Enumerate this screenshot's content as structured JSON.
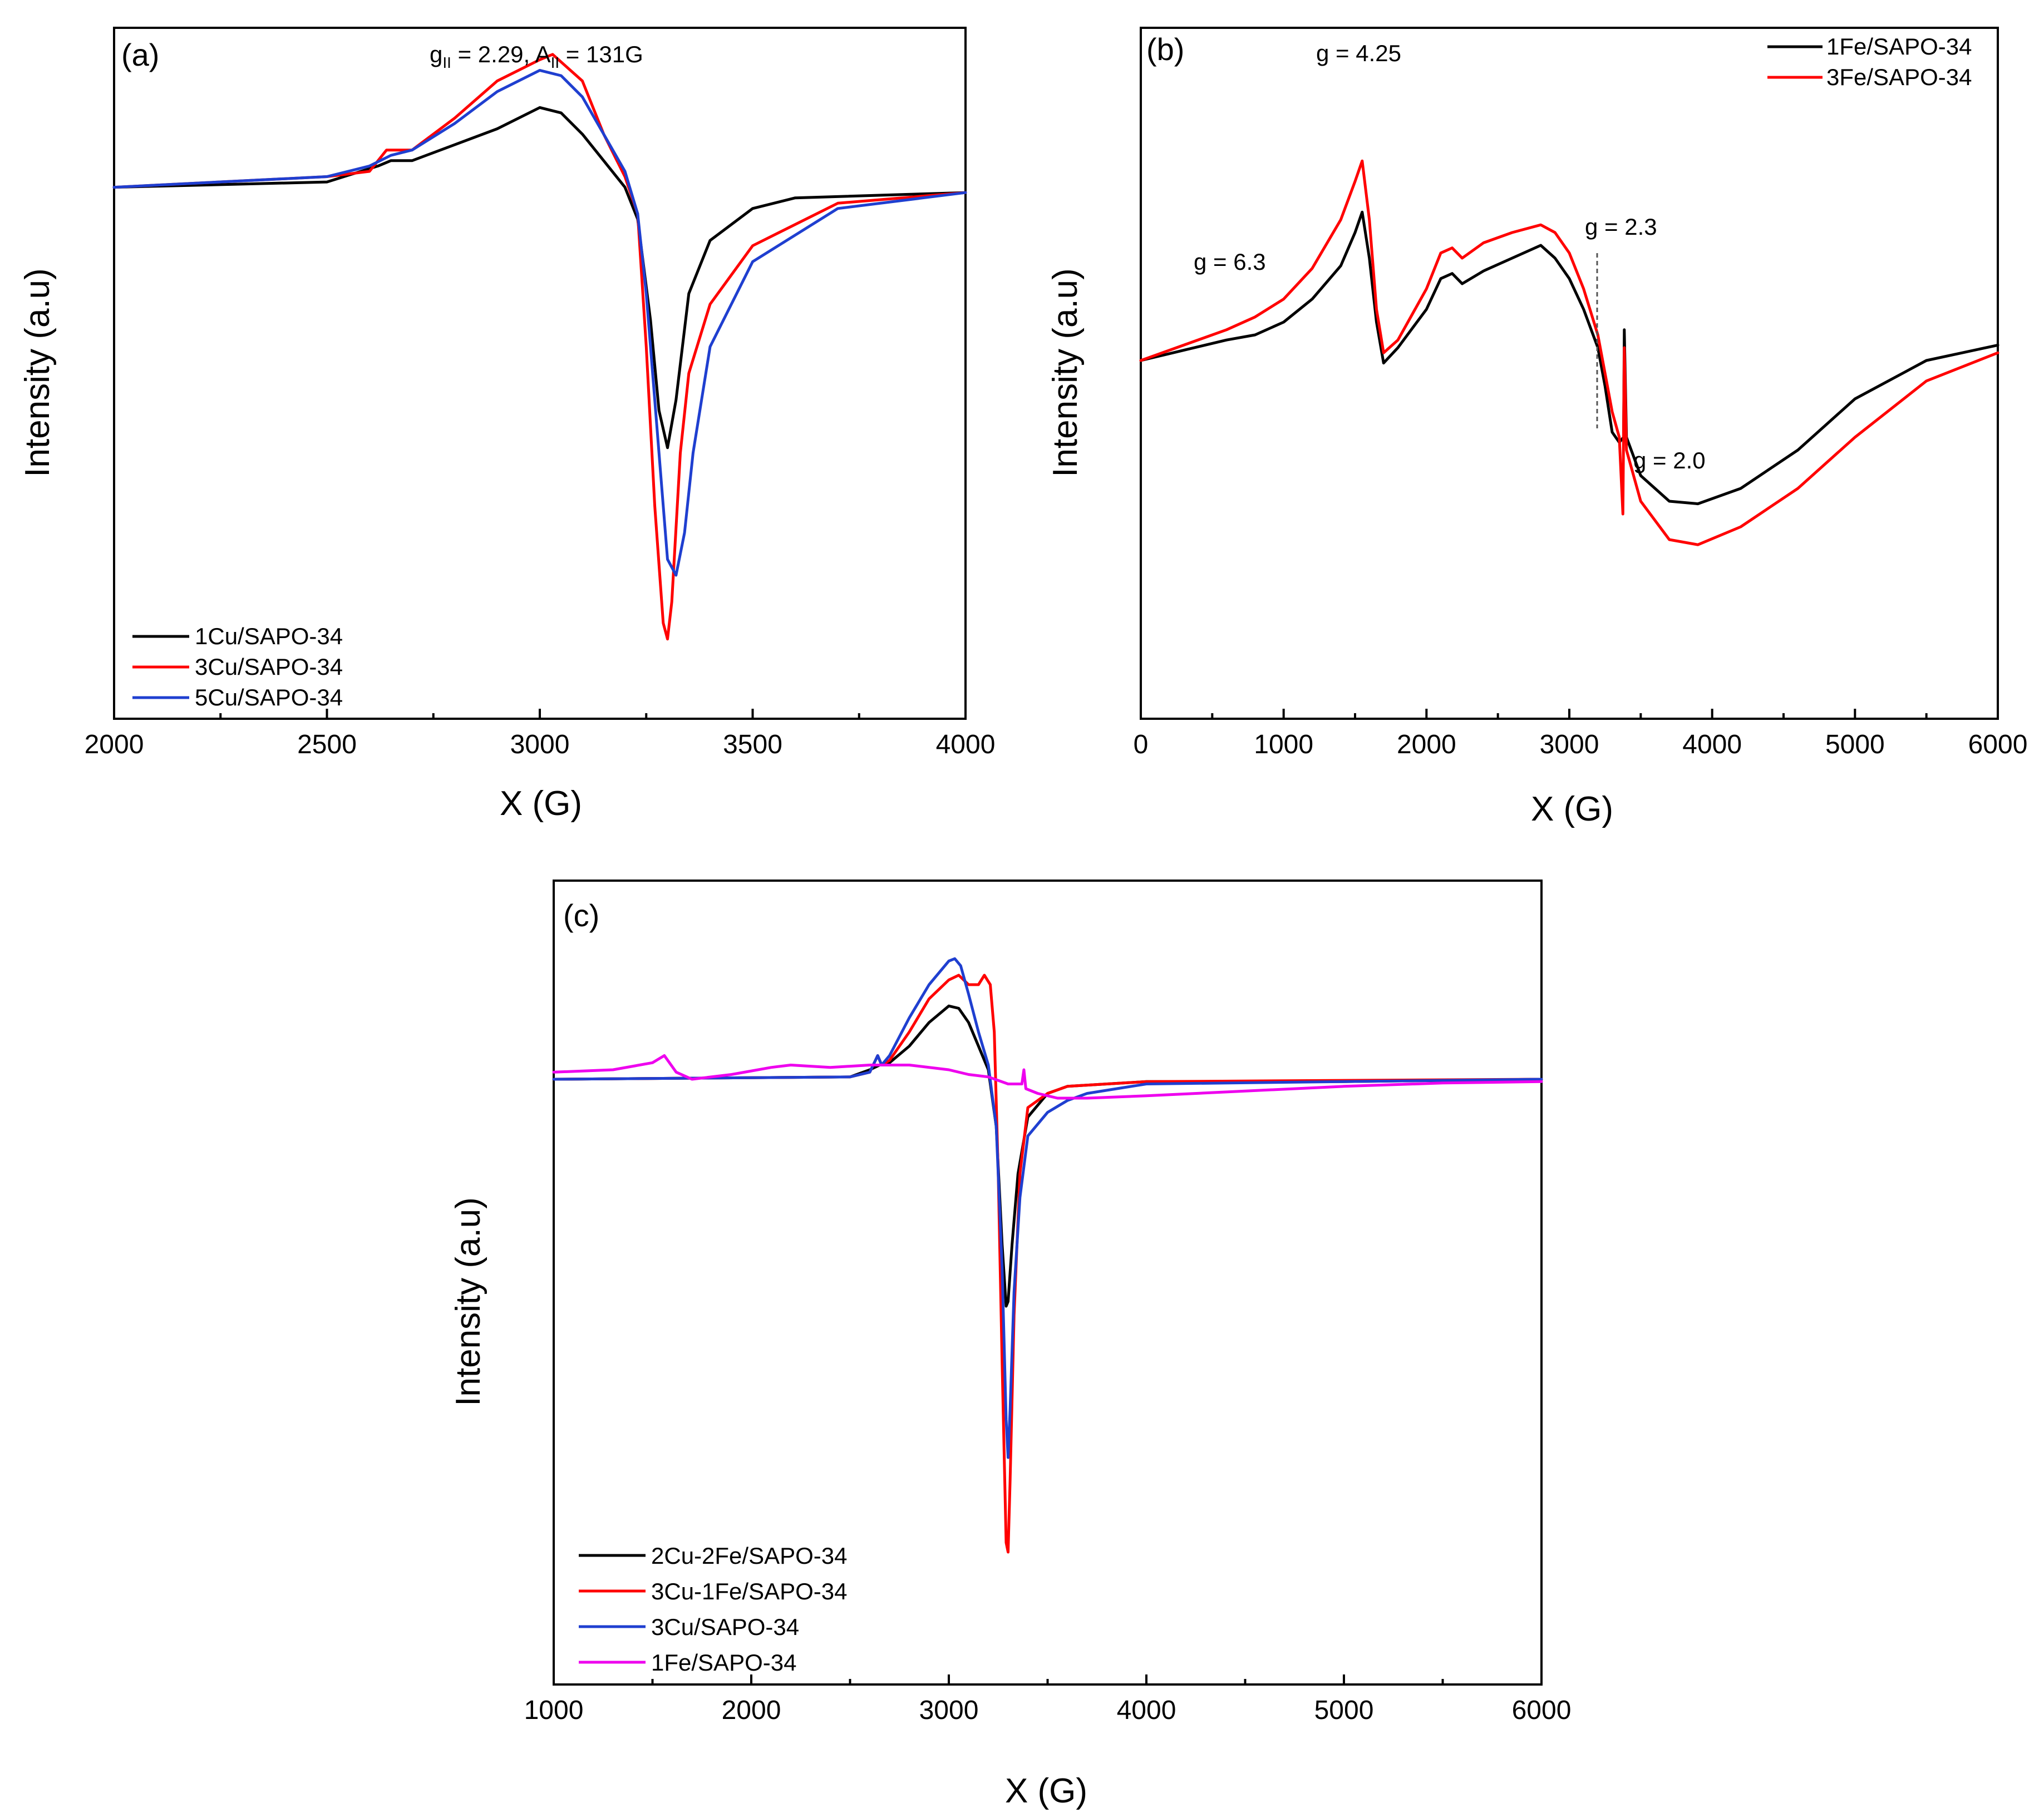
{
  "chart_data": [
    {
      "panel": "(a)",
      "type": "line",
      "title": "",
      "xlabel": "X (G)",
      "ylabel": "Intensity (a.u)",
      "xlim": [
        2000,
        4000
      ],
      "ylim": [
        -1.0,
        0.3
      ],
      "xticks": [
        "2000",
        "2500",
        "3000",
        "3500",
        "4000"
      ],
      "grid": false,
      "legend_position": "bottom-left",
      "annotations": {
        "g_text": "g",
        "g_sub": "II",
        "g_val": " = 2.29, A",
        "a_sub": "II",
        "a_val": " = 131G"
      },
      "series": [
        {
          "name": "1Cu/SAPO-34",
          "color": "#000000",
          "x": [
            2000,
            2500,
            2620,
            2650,
            2700,
            2800,
            2900,
            3000,
            3050,
            3100,
            3150,
            3200,
            3230,
            3260,
            3280,
            3300,
            3320,
            3350,
            3400,
            3500,
            3600,
            4000
          ],
          "y": [
            0.0,
            0.01,
            0.04,
            0.05,
            0.05,
            0.08,
            0.11,
            0.15,
            0.14,
            0.1,
            0.05,
            0.0,
            -0.06,
            -0.25,
            -0.42,
            -0.49,
            -0.4,
            -0.2,
            -0.1,
            -0.04,
            -0.02,
            -0.01
          ]
        },
        {
          "name": "3Cu/SAPO-34",
          "color": "#ff0000",
          "x": [
            2000,
            2500,
            2600,
            2640,
            2700,
            2800,
            2900,
            3000,
            3030,
            3100,
            3150,
            3200,
            3230,
            3250,
            3270,
            3290,
            3300,
            3310,
            3330,
            3350,
            3400,
            3500,
            3700,
            4000
          ],
          "y": [
            0.0,
            0.02,
            0.03,
            0.07,
            0.07,
            0.13,
            0.2,
            0.24,
            0.25,
            0.2,
            0.1,
            0.02,
            -0.05,
            -0.3,
            -0.6,
            -0.82,
            -0.85,
            -0.78,
            -0.5,
            -0.35,
            -0.22,
            -0.11,
            -0.03,
            -0.01
          ]
        },
        {
          "name": "5Cu/SAPO-34",
          "color": "#1f3fd0",
          "x": [
            2000,
            2500,
            2600,
            2650,
            2700,
            2800,
            2900,
            3000,
            3050,
            3100,
            3150,
            3200,
            3230,
            3250,
            3280,
            3300,
            3320,
            3340,
            3360,
            3400,
            3500,
            3700,
            4000
          ],
          "y": [
            0.0,
            0.02,
            0.04,
            0.06,
            0.07,
            0.12,
            0.18,
            0.22,
            0.21,
            0.17,
            0.1,
            0.03,
            -0.05,
            -0.2,
            -0.5,
            -0.7,
            -0.73,
            -0.65,
            -0.5,
            -0.3,
            -0.14,
            -0.04,
            -0.01
          ]
        }
      ]
    },
    {
      "panel": "(b)",
      "type": "line",
      "title": "",
      "xlabel": "X (G)",
      "ylabel": "Intensity (a.u)",
      "xlim": [
        0,
        6000
      ],
      "ylim": [
        -1.0,
        1.0
      ],
      "xticks": [
        "0",
        "1000",
        "2000",
        "3000",
        "4000",
        "5000",
        "6000"
      ],
      "grid": false,
      "legend_position": "top-right",
      "annotations": {
        "g425": "g = 4.25",
        "g63": "g = 6.3",
        "g23": "g = 2.3",
        "g20": "g = 2.0"
      },
      "series": [
        {
          "name": "1Fe/SAPO-34",
          "color": "#000000",
          "x": [
            0,
            300,
            600,
            800,
            1000,
            1200,
            1400,
            1500,
            1550,
            1600,
            1650,
            1700,
            1800,
            2000,
            2100,
            2180,
            2250,
            2400,
            2600,
            2800,
            2900,
            3000,
            3100,
            3200,
            3250,
            3300,
            3350,
            3380,
            3385,
            3400,
            3500,
            3700,
            3900,
            4200,
            4600,
            5000,
            5500,
            6000
          ],
          "y": [
            0.0,
            0.04,
            0.08,
            0.1,
            0.15,
            0.24,
            0.37,
            0.5,
            0.58,
            0.4,
            0.15,
            -0.01,
            0.05,
            0.2,
            0.32,
            0.34,
            0.3,
            0.35,
            0.4,
            0.45,
            0.4,
            0.32,
            0.2,
            0.05,
            -0.1,
            -0.28,
            -0.32,
            -0.3,
            0.12,
            -0.3,
            -0.45,
            -0.55,
            -0.56,
            -0.5,
            -0.35,
            -0.15,
            0.0,
            0.06
          ]
        },
        {
          "name": "3Fe/SAPO-34",
          "color": "#ff0000",
          "x": [
            0,
            300,
            600,
            800,
            1000,
            1200,
            1400,
            1500,
            1550,
            1600,
            1650,
            1700,
            1800,
            2000,
            2100,
            2180,
            2250,
            2400,
            2600,
            2800,
            2900,
            3000,
            3100,
            3200,
            3250,
            3300,
            3350,
            3375,
            3385,
            3400,
            3500,
            3700,
            3900,
            4200,
            4600,
            5000,
            5500,
            6000
          ],
          "y": [
            0.0,
            0.06,
            0.12,
            0.17,
            0.24,
            0.36,
            0.55,
            0.7,
            0.78,
            0.55,
            0.2,
            0.03,
            0.08,
            0.28,
            0.42,
            0.44,
            0.4,
            0.46,
            0.5,
            0.53,
            0.5,
            0.42,
            0.28,
            0.1,
            -0.05,
            -0.2,
            -0.3,
            -0.6,
            0.05,
            -0.35,
            -0.55,
            -0.7,
            -0.72,
            -0.65,
            -0.5,
            -0.3,
            -0.08,
            0.03
          ]
        }
      ]
    },
    {
      "panel": "(c)",
      "type": "line",
      "title": "",
      "xlabel": "X (G)",
      "ylabel": "Intensity (a.u)",
      "xlim": [
        1000,
        6000
      ],
      "ylim": [
        -1.0,
        0.3
      ],
      "xticks": [
        "1000",
        "2000",
        "3000",
        "4000",
        "5000",
        "6000"
      ],
      "grid": false,
      "legend_position": "bottom-left",
      "series": [
        {
          "name": "2Cu-2Fe/SAPO-34",
          "color": "#000000",
          "x": [
            1000,
            2500,
            2600,
            2650,
            2700,
            2800,
            2900,
            3000,
            3050,
            3100,
            3150,
            3200,
            3240,
            3270,
            3290,
            3300,
            3320,
            3350,
            3400,
            3500,
            3600,
            4000,
            5000,
            6000
          ],
          "y": [
            0.0,
            0.005,
            0.02,
            0.03,
            0.035,
            0.07,
            0.12,
            0.155,
            0.15,
            0.12,
            0.07,
            0.02,
            -0.1,
            -0.35,
            -0.48,
            -0.47,
            -0.35,
            -0.2,
            -0.08,
            -0.03,
            -0.015,
            -0.005,
            -0.005,
            0.0
          ]
        },
        {
          "name": "3Cu-1Fe/SAPO-34",
          "color": "#ff0000",
          "x": [
            1000,
            2500,
            2600,
            2640,
            2660,
            2700,
            2800,
            2900,
            3000,
            3050,
            3100,
            3150,
            3180,
            3210,
            3230,
            3250,
            3270,
            3290,
            3300,
            3310,
            3330,
            3360,
            3400,
            3500,
            3600,
            4000,
            6000
          ],
          "y": [
            0.0,
            0.005,
            0.015,
            0.05,
            0.03,
            0.04,
            0.1,
            0.17,
            0.21,
            0.22,
            0.2,
            0.2,
            0.22,
            0.2,
            0.1,
            -0.2,
            -0.6,
            -0.98,
            -1.0,
            -0.85,
            -0.5,
            -0.2,
            -0.06,
            -0.03,
            -0.015,
            -0.005,
            0.0
          ]
        },
        {
          "name": "3Cu/SAPO-34",
          "color": "#1f3fd0",
          "x": [
            1000,
            2500,
            2600,
            2640,
            2660,
            2700,
            2800,
            2900,
            3000,
            3030,
            3060,
            3100,
            3150,
            3200,
            3240,
            3270,
            3290,
            3300,
            3310,
            3330,
            3360,
            3400,
            3500,
            3600,
            3700,
            4000,
            6000
          ],
          "y": [
            0.0,
            0.005,
            0.015,
            0.05,
            0.03,
            0.05,
            0.13,
            0.2,
            0.25,
            0.255,
            0.24,
            0.18,
            0.1,
            0.03,
            -0.1,
            -0.4,
            -0.72,
            -0.8,
            -0.7,
            -0.45,
            -0.25,
            -0.12,
            -0.07,
            -0.045,
            -0.03,
            -0.01,
            0.0
          ]
        },
        {
          "name": "1Fe/SAPO-34",
          "color": "#ee00ee",
          "x": [
            1000,
            1300,
            1500,
            1560,
            1620,
            1700,
            1900,
            2100,
            2200,
            2400,
            2600,
            2800,
            3000,
            3100,
            3200,
            3300,
            3370,
            3380,
            3390,
            3450,
            3550,
            3700,
            4000,
            4500,
            5000,
            5500,
            6000
          ],
          "y": [
            0.015,
            0.02,
            0.035,
            0.05,
            0.015,
            0.0,
            0.01,
            0.025,
            0.03,
            0.025,
            0.03,
            0.03,
            0.02,
            0.01,
            0.005,
            -0.01,
            -0.01,
            0.02,
            -0.02,
            -0.03,
            -0.04,
            -0.04,
            -0.035,
            -0.025,
            -0.015,
            -0.008,
            -0.005
          ]
        }
      ]
    }
  ]
}
